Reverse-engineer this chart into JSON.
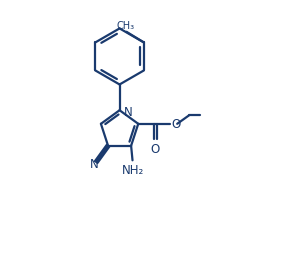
{
  "line_color": "#1a3a6e",
  "bg_color": "#ffffff",
  "lw": 1.6,
  "figsize": [
    2.84,
    2.55
  ],
  "dpi": 100,
  "xlim": [
    0,
    10
  ],
  "ylim": [
    0,
    9
  ]
}
